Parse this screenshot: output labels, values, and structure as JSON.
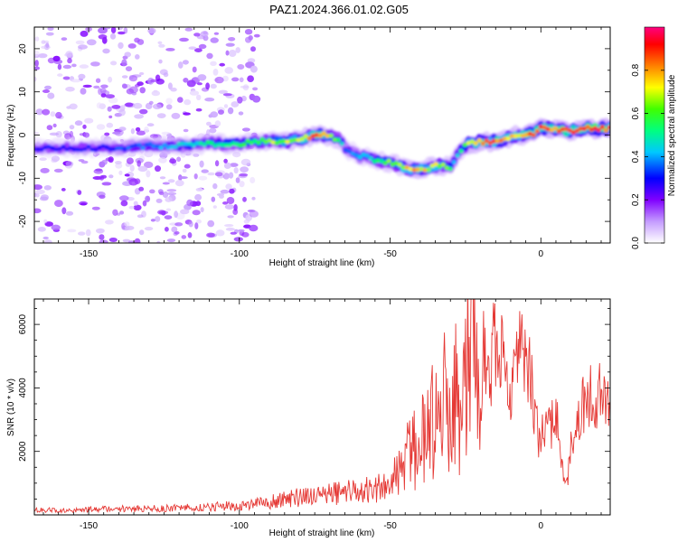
{
  "title": "PAZ1.2024.366.01.02.G05",
  "chart_data": [
    {
      "type": "heatmap",
      "xlabel": "Height of straight line (km)",
      "ylabel": "Frequency (Hz)",
      "xlim": [
        -168,
        23
      ],
      "ylim": [
        -25,
        25
      ],
      "xticks": [
        -150,
        -100,
        -50,
        0
      ],
      "yticks": [
        -20,
        -10,
        0,
        10,
        20
      ],
      "colorbar": {
        "label": "Normalized spectral amplitude",
        "range": [
          0,
          1
        ],
        "ticks": [
          0.0,
          0.2,
          0.4,
          0.6,
          0.8
        ],
        "tick_labels": [
          "0.0",
          "0.2",
          "0.4",
          "0.6",
          "0.8"
        ]
      },
      "ridge": {
        "x": [
          -168,
          -160,
          -150,
          -140,
          -130,
          -120,
          -110,
          -100,
          -95,
          -90,
          -85,
          -80,
          -75,
          -72,
          -70,
          -67,
          -65,
          -62,
          -60,
          -57,
          -55,
          -52,
          -50,
          -47,
          -45,
          -42,
          -40,
          -37,
          -35,
          -32,
          -30,
          -28,
          -26,
          -24,
          -22,
          -20,
          -18,
          -15,
          -12,
          -10,
          -8,
          -5,
          -2,
          0,
          3,
          5,
          8,
          10,
          13,
          15,
          18,
          20,
          23
        ],
        "frequency": [
          -3,
          -3,
          -3,
          -3,
          -2.5,
          -2.5,
          -2,
          -2,
          -1.5,
          -1.5,
          -1.5,
          -1,
          0,
          0,
          -0.5,
          -1,
          -3,
          -4,
          -5,
          -5,
          -6,
          -6,
          -6.5,
          -7,
          -7.5,
          -8,
          -8,
          -7.5,
          -7,
          -7,
          -7.5,
          -5,
          -3,
          -2,
          -2,
          -1.5,
          -1.5,
          -1.5,
          -1,
          -0.5,
          0,
          0,
          0.5,
          1.5,
          1.5,
          1.5,
          1,
          1,
          1,
          1.5,
          1.5,
          1.5,
          1.5
        ],
        "amplitude": [
          0.3,
          0.3,
          0.3,
          0.35,
          0.4,
          0.45,
          0.55,
          0.55,
          0.6,
          0.7,
          0.7,
          0.75,
          0.85,
          0.85,
          0.7,
          0.55,
          0.4,
          0.4,
          0.45,
          0.45,
          0.55,
          0.6,
          0.65,
          0.7,
          0.75,
          0.8,
          0.8,
          0.75,
          0.75,
          0.7,
          0.55,
          0.4,
          0.55,
          0.75,
          0.8,
          0.85,
          0.85,
          0.85,
          0.85,
          0.8,
          0.8,
          0.85,
          0.9,
          0.95,
          0.9,
          0.9,
          0.85,
          0.85,
          0.85,
          0.9,
          0.95,
          0.95,
          0.95
        ]
      },
      "scatter_noise_region": {
        "x": [
          -168,
          -100
        ],
        "frequency": [
          -25,
          25
        ],
        "amplitude": [
          0.0,
          0.2
        ]
      }
    },
    {
      "type": "line",
      "xlabel": "Height of straight line (km)",
      "ylabel": "SNR (10 * v/v)",
      "xlim": [
        -168,
        23
      ],
      "ylim": [
        0,
        6800
      ],
      "xticks": [
        -150,
        -100,
        -50,
        0
      ],
      "yticks": [
        2000,
        4000,
        6000
      ],
      "color": "#e53935",
      "series": [
        {
          "x": [
            -168,
            -160,
            -150,
            -140,
            -130,
            -120,
            -110,
            -100,
            -95,
            -90,
            -85,
            -80,
            -75,
            -70,
            -65,
            -60,
            -55,
            -50,
            -47,
            -45,
            -42,
            -40,
            -38,
            -36,
            -34,
            -32,
            -30,
            -28,
            -26,
            -24,
            -23,
            -22,
            -21,
            -20,
            -19,
            -18,
            -17,
            -16,
            -15,
            -14,
            -13,
            -12,
            -11,
            -10,
            -9,
            -8,
            -7,
            -6,
            -5,
            -4,
            -3,
            -2,
            -1,
            0,
            1,
            2,
            3,
            4,
            5,
            6,
            7,
            8,
            9,
            10,
            11,
            12,
            13,
            14,
            15,
            16,
            17,
            18,
            19,
            20,
            21,
            22,
            23
          ],
          "values": [
            150,
            160,
            170,
            190,
            200,
            220,
            250,
            300,
            350,
            400,
            500,
            550,
            600,
            650,
            700,
            750,
            800,
            950,
            1300,
            1700,
            2100,
            2500,
            2300,
            3200,
            2600,
            3600,
            2800,
            3800,
            3000,
            5700,
            6500,
            5200,
            3800,
            3600,
            5400,
            4800,
            4300,
            5200,
            5500,
            4800,
            5000,
            4500,
            4300,
            3900,
            4800,
            5200,
            5400,
            5000,
            5300,
            4600,
            4100,
            3300,
            2500,
            2200,
            2800,
            3100,
            2600,
            3000,
            3500,
            2500,
            1500,
            1000,
            1300,
            2200,
            2600,
            3000,
            3200,
            3500,
            3400,
            3600,
            3800,
            3700,
            3800,
            3900,
            4000,
            3800,
            3800
          ]
        }
      ]
    }
  ]
}
